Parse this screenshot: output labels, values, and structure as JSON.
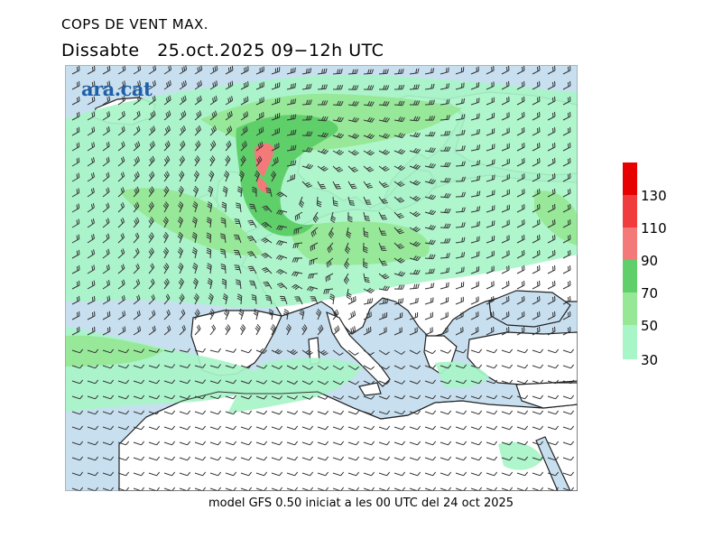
{
  "title": "COPS DE VENT MAX.",
  "subtitle_day": "Dissabte",
  "subtitle_date": "25.oct.2025 09−12h UTC",
  "logo_text": "ara.cat",
  "footer": "model GFS 0.50 iniciat a les 00 UTC del 24 oct 2025",
  "legend": {
    "levels": [
      "30",
      "50",
      "70",
      "90",
      "110",
      "130"
    ],
    "colors": [
      "#a8f5c8",
      "#96e896",
      "#5fcf6a",
      "#f47a7a",
      "#f03c3c",
      "#e60000"
    ]
  },
  "colors": {
    "sea": "#c8dff0",
    "land": "#ffffff",
    "coast": "#222222",
    "barb": "#333333"
  }
}
